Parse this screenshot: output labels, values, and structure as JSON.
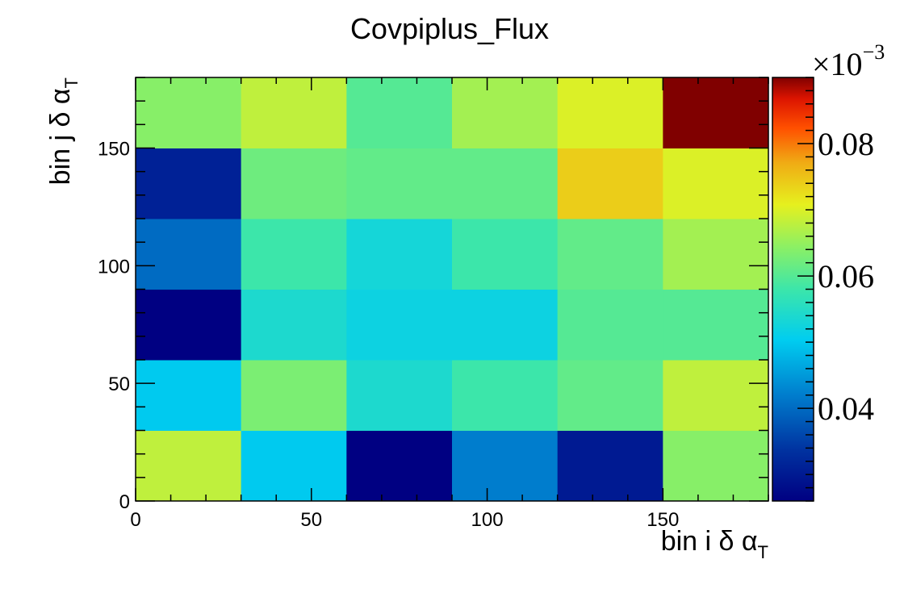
{
  "chart_data": {
    "type": "heatmap",
    "title": "Covpiplus_Flux",
    "xlabel": {
      "main": "bin i δ α",
      "sub": "T"
    },
    "ylabel": {
      "main": "bin j δ α",
      "sub": "T"
    },
    "xlim": [
      0,
      180
    ],
    "ylim": [
      0,
      180
    ],
    "x_bin_edges": [
      0,
      30,
      60,
      90,
      120,
      150,
      180
    ],
    "y_bin_edges": [
      0,
      30,
      60,
      90,
      120,
      150,
      180
    ],
    "x_ticks": [
      {
        "value": 0,
        "label": "0"
      },
      {
        "value": 50,
        "label": "50"
      },
      {
        "value": 100,
        "label": "100"
      },
      {
        "value": 150,
        "label": "150"
      }
    ],
    "y_ticks": [
      {
        "value": 0,
        "label": "0"
      },
      {
        "value": 50,
        "label": "50"
      },
      {
        "value": 100,
        "label": "100"
      },
      {
        "value": 150,
        "label": "150"
      }
    ],
    "values_rows_bottom_to_top": [
      [
        0.068,
        0.05,
        0.026,
        0.042,
        0.03,
        0.064
      ],
      [
        0.05,
        0.063,
        0.054,
        0.058,
        0.061,
        0.068
      ],
      [
        0.026,
        0.054,
        0.052,
        0.052,
        0.06,
        0.06
      ],
      [
        0.04,
        0.058,
        0.053,
        0.058,
        0.061,
        0.066
      ],
      [
        0.031,
        0.062,
        0.061,
        0.061,
        0.074,
        0.07
      ],
      [
        0.064,
        0.068,
        0.06,
        0.066,
        0.07,
        0.09
      ]
    ],
    "colorbar": {
      "range": [
        0.026,
        0.09
      ],
      "multiplier": "×10",
      "exponent": "−3",
      "ticks": [
        {
          "value": 0.04,
          "label": "0.04"
        },
        {
          "value": 0.06,
          "label": "0.06"
        },
        {
          "value": 0.08,
          "label": "0.08"
        }
      ],
      "palette": "kBird"
    }
  }
}
